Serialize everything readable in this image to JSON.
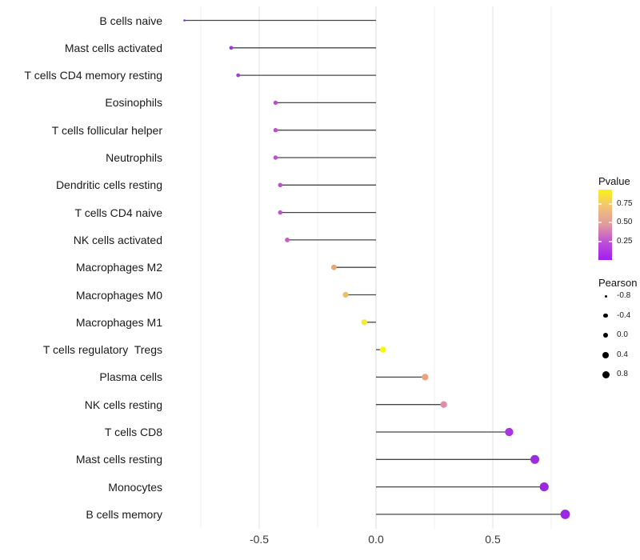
{
  "chart_data": {
    "type": "scatter",
    "variant": "lollipop",
    "title": "",
    "xlabel": "",
    "ylabel": "",
    "xlim": [
      -0.9,
      0.9
    ],
    "grid": true,
    "baseline_x": 0,
    "x_ticks": [
      {
        "value": -0.5,
        "label": "-0.5"
      },
      {
        "value": 0.0,
        "label": "0.0"
      },
      {
        "value": 0.5,
        "label": "0.5"
      }
    ],
    "x_major_gridlines": [
      -0.5,
      0.0,
      0.5
    ],
    "x_minor_gridlines": [
      -0.75,
      -0.25,
      0.25,
      0.75
    ],
    "series_encoding": {
      "x": "pearson",
      "color": "pvalue (purple = low, yellow = high)",
      "size": "pearson"
    },
    "rows": [
      {
        "label": "B cells naive",
        "pearson": -0.82,
        "color": "#8226E0",
        "radius": 1.3
      },
      {
        "label": "Mast cells activated",
        "pearson": -0.62,
        "color": "#A138D8",
        "radius": 2.4
      },
      {
        "label": "T cells CD4 memory resting",
        "pearson": -0.59,
        "color": "#A53CD4",
        "radius": 2.4
      },
      {
        "label": "Eosinophils",
        "pearson": -0.43,
        "color": "#BA4ECC",
        "radius": 2.7
      },
      {
        "label": "T cells follicular helper",
        "pearson": -0.43,
        "color": "#BA4ECC",
        "radius": 2.7
      },
      {
        "label": "Neutrophils",
        "pearson": -0.43,
        "color": "#BB50CB",
        "radius": 2.7
      },
      {
        "label": "Dendritic cells resting",
        "pearson": -0.41,
        "color": "#BD53C9",
        "radius": 2.75
      },
      {
        "label": "T cells CD4 naive",
        "pearson": -0.41,
        "color": "#BD53C9",
        "radius": 2.75
      },
      {
        "label": "NK cells activated",
        "pearson": -0.38,
        "color": "#C45CC4",
        "radius": 2.9
      },
      {
        "label": "Macrophages M2",
        "pearson": -0.18,
        "color": "#E8A873",
        "radius": 3.5
      },
      {
        "label": "Macrophages M0",
        "pearson": -0.13,
        "color": "#EEBE62",
        "radius": 3.6
      },
      {
        "label": "Macrophages M1",
        "pearson": -0.05,
        "color": "#F6E93C",
        "radius": 3.7
      },
      {
        "label": "T cells regulatory  Tregs",
        "pearson": 0.03,
        "color": "#FBF508",
        "radius": 3.8
      },
      {
        "label": "Plasma cells",
        "pearson": 0.21,
        "color": "#EFA07C",
        "radius": 4.1
      },
      {
        "label": "NK cells resting",
        "pearson": 0.29,
        "color": "#DE8EA4",
        "radius": 4.2
      },
      {
        "label": "T cells CD8",
        "pearson": 0.57,
        "color": "#A835DE",
        "radius": 5.2
      },
      {
        "label": "Mast cells resting",
        "pearson": 0.68,
        "color": "#9D2BE2",
        "radius": 5.5
      },
      {
        "label": "Monocytes",
        "pearson": 0.72,
        "color": "#9A28E3",
        "radius": 5.6
      },
      {
        "label": "B cells memory",
        "pearson": 0.81,
        "color": "#9B27E5",
        "radius": 5.9
      }
    ]
  },
  "legends": {
    "pvalue": {
      "title": "Pvalue",
      "range": [
        0.0,
        0.94
      ],
      "ticks": [
        {
          "value": 0.75,
          "label": "0.75"
        },
        {
          "value": 0.5,
          "label": "0.50"
        },
        {
          "value": 0.25,
          "label": "0.25"
        }
      ],
      "gradient_bottom_to_top": [
        "#A01EF0",
        "#BE4FD8",
        "#E2999E",
        "#F1C279",
        "#FBF116"
      ]
    },
    "pearson": {
      "title": "Pearson",
      "entries": [
        {
          "label": "-0.8",
          "radius": 1.5
        },
        {
          "label": "-0.4",
          "radius": 2.65
        },
        {
          "label": "0.0",
          "radius": 3.35
        },
        {
          "label": "0.4",
          "radius": 4.0
        },
        {
          "label": "0.8",
          "radius": 4.5
        }
      ],
      "dot_color": "#000000"
    }
  },
  "style_colors": {
    "background": "#ffffff",
    "segment": "#474747",
    "major_gridline": "#E2E2E2",
    "zero_gridline": "#D8D8D8",
    "minor_gridline": "#F1F1F1",
    "axis_text": "#383838"
  }
}
